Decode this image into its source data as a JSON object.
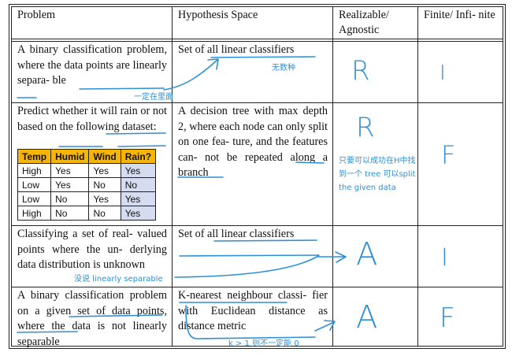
{
  "header": {
    "problem": "Problem",
    "hypothesis": "Hypothesis Space",
    "realizable": "Realizable/ Agnostic",
    "finite": "Finite/ Infi- nite"
  },
  "rows": [
    {
      "problem": "A binary classification problem, where the data points are linearly separa- ble",
      "hypothesis": "Set of all linear classifiers",
      "realizable_mark": "R",
      "finite_mark": "I",
      "notes": [
        "无数种",
        "一定在里面"
      ]
    },
    {
      "problem": "Predict whether it will rain or not based on the following dataset:",
      "hypothesis": "A decision tree with max depth 2, where each node can only split on one fea- ture, and the features can- not be repeated along a branch",
      "realizable_mark": "R",
      "finite_mark": "F",
      "notes": [
        "只要可以成功在H中找到一个 tree 可以split the given data"
      ],
      "dataset": {
        "columns": [
          "Temp",
          "Humid",
          "Wind",
          "Rain?"
        ],
        "rows": [
          [
            "High",
            "Yes",
            "Yes",
            "Yes"
          ],
          [
            "Low",
            "Yes",
            "No",
            "No"
          ],
          [
            "Low",
            "No",
            "Yes",
            "Yes"
          ],
          [
            "High",
            "No",
            "No",
            "Yes"
          ]
        ]
      }
    },
    {
      "problem": "Classifying a set of real- valued points where the un- derlying data distribution is unknown",
      "hypothesis": "Set of all linear classifiers",
      "realizable_mark": "A",
      "finite_mark": "I",
      "notes": [
        "没说 linearly separable"
      ]
    },
    {
      "problem": "A binary classification problem on a given set of data points, where the data is not linearly separable",
      "hypothesis": "K-nearest neighbour classi- fier with Euclidean distance as distance metric",
      "realizable_mark": "A",
      "finite_mark": "F",
      "notes": [
        "k > 1 则不一定能 0"
      ]
    }
  ],
  "colors": {
    "ink": "#2f8fd8",
    "table_header": "#f5b500",
    "rain_column": "#d6dcef"
  }
}
